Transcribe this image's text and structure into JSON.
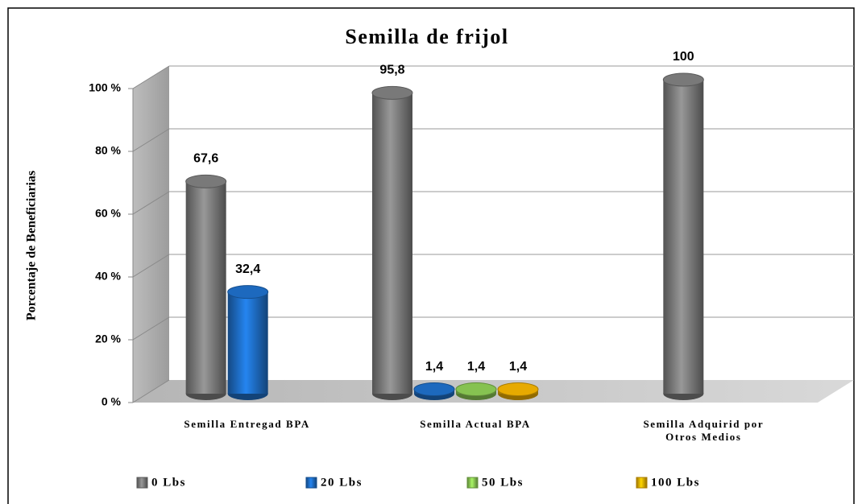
{
  "chart_data": {
    "type": "bar3d",
    "title": "Semilla de frijol",
    "y_axis_label": "Porcentaje de Beneficiarias",
    "categories": [
      "Semilla Entregad BPA",
      "Semilla Actual BPA",
      "Semilla Adquirid por Otros Medios"
    ],
    "series": [
      {
        "name": "0 Lbs",
        "color": "#7f7f7f",
        "values": [
          67.6,
          95.8,
          100
        ],
        "value_labels": [
          "67,6",
          "95,8",
          "100"
        ]
      },
      {
        "name": "20 Lbs",
        "color": "#1f6fc8",
        "values": [
          32.4,
          1.4,
          null
        ],
        "value_labels": [
          "32,4",
          "1,4",
          null
        ]
      },
      {
        "name": "50 Lbs",
        "color": "#8dcc55",
        "values": [
          null,
          1.4,
          null
        ],
        "value_labels": [
          null,
          "1,4",
          null
        ]
      },
      {
        "name": "100 Lbs",
        "color": "#f3b300",
        "values": [
          null,
          1.4,
          null
        ],
        "value_labels": [
          null,
          "1,4",
          null
        ]
      }
    ],
    "ylim": [
      0,
      100
    ],
    "yticks": [
      {
        "value": 0,
        "label": "0 %"
      },
      {
        "value": 20,
        "label": "20 %"
      },
      {
        "value": 40,
        "label": "40 %"
      },
      {
        "value": 60,
        "label": "60 %"
      },
      {
        "value": 80,
        "label": "80 %"
      },
      {
        "value": 100,
        "label": "100 %"
      }
    ],
    "grid": true,
    "legend": "bottom"
  }
}
